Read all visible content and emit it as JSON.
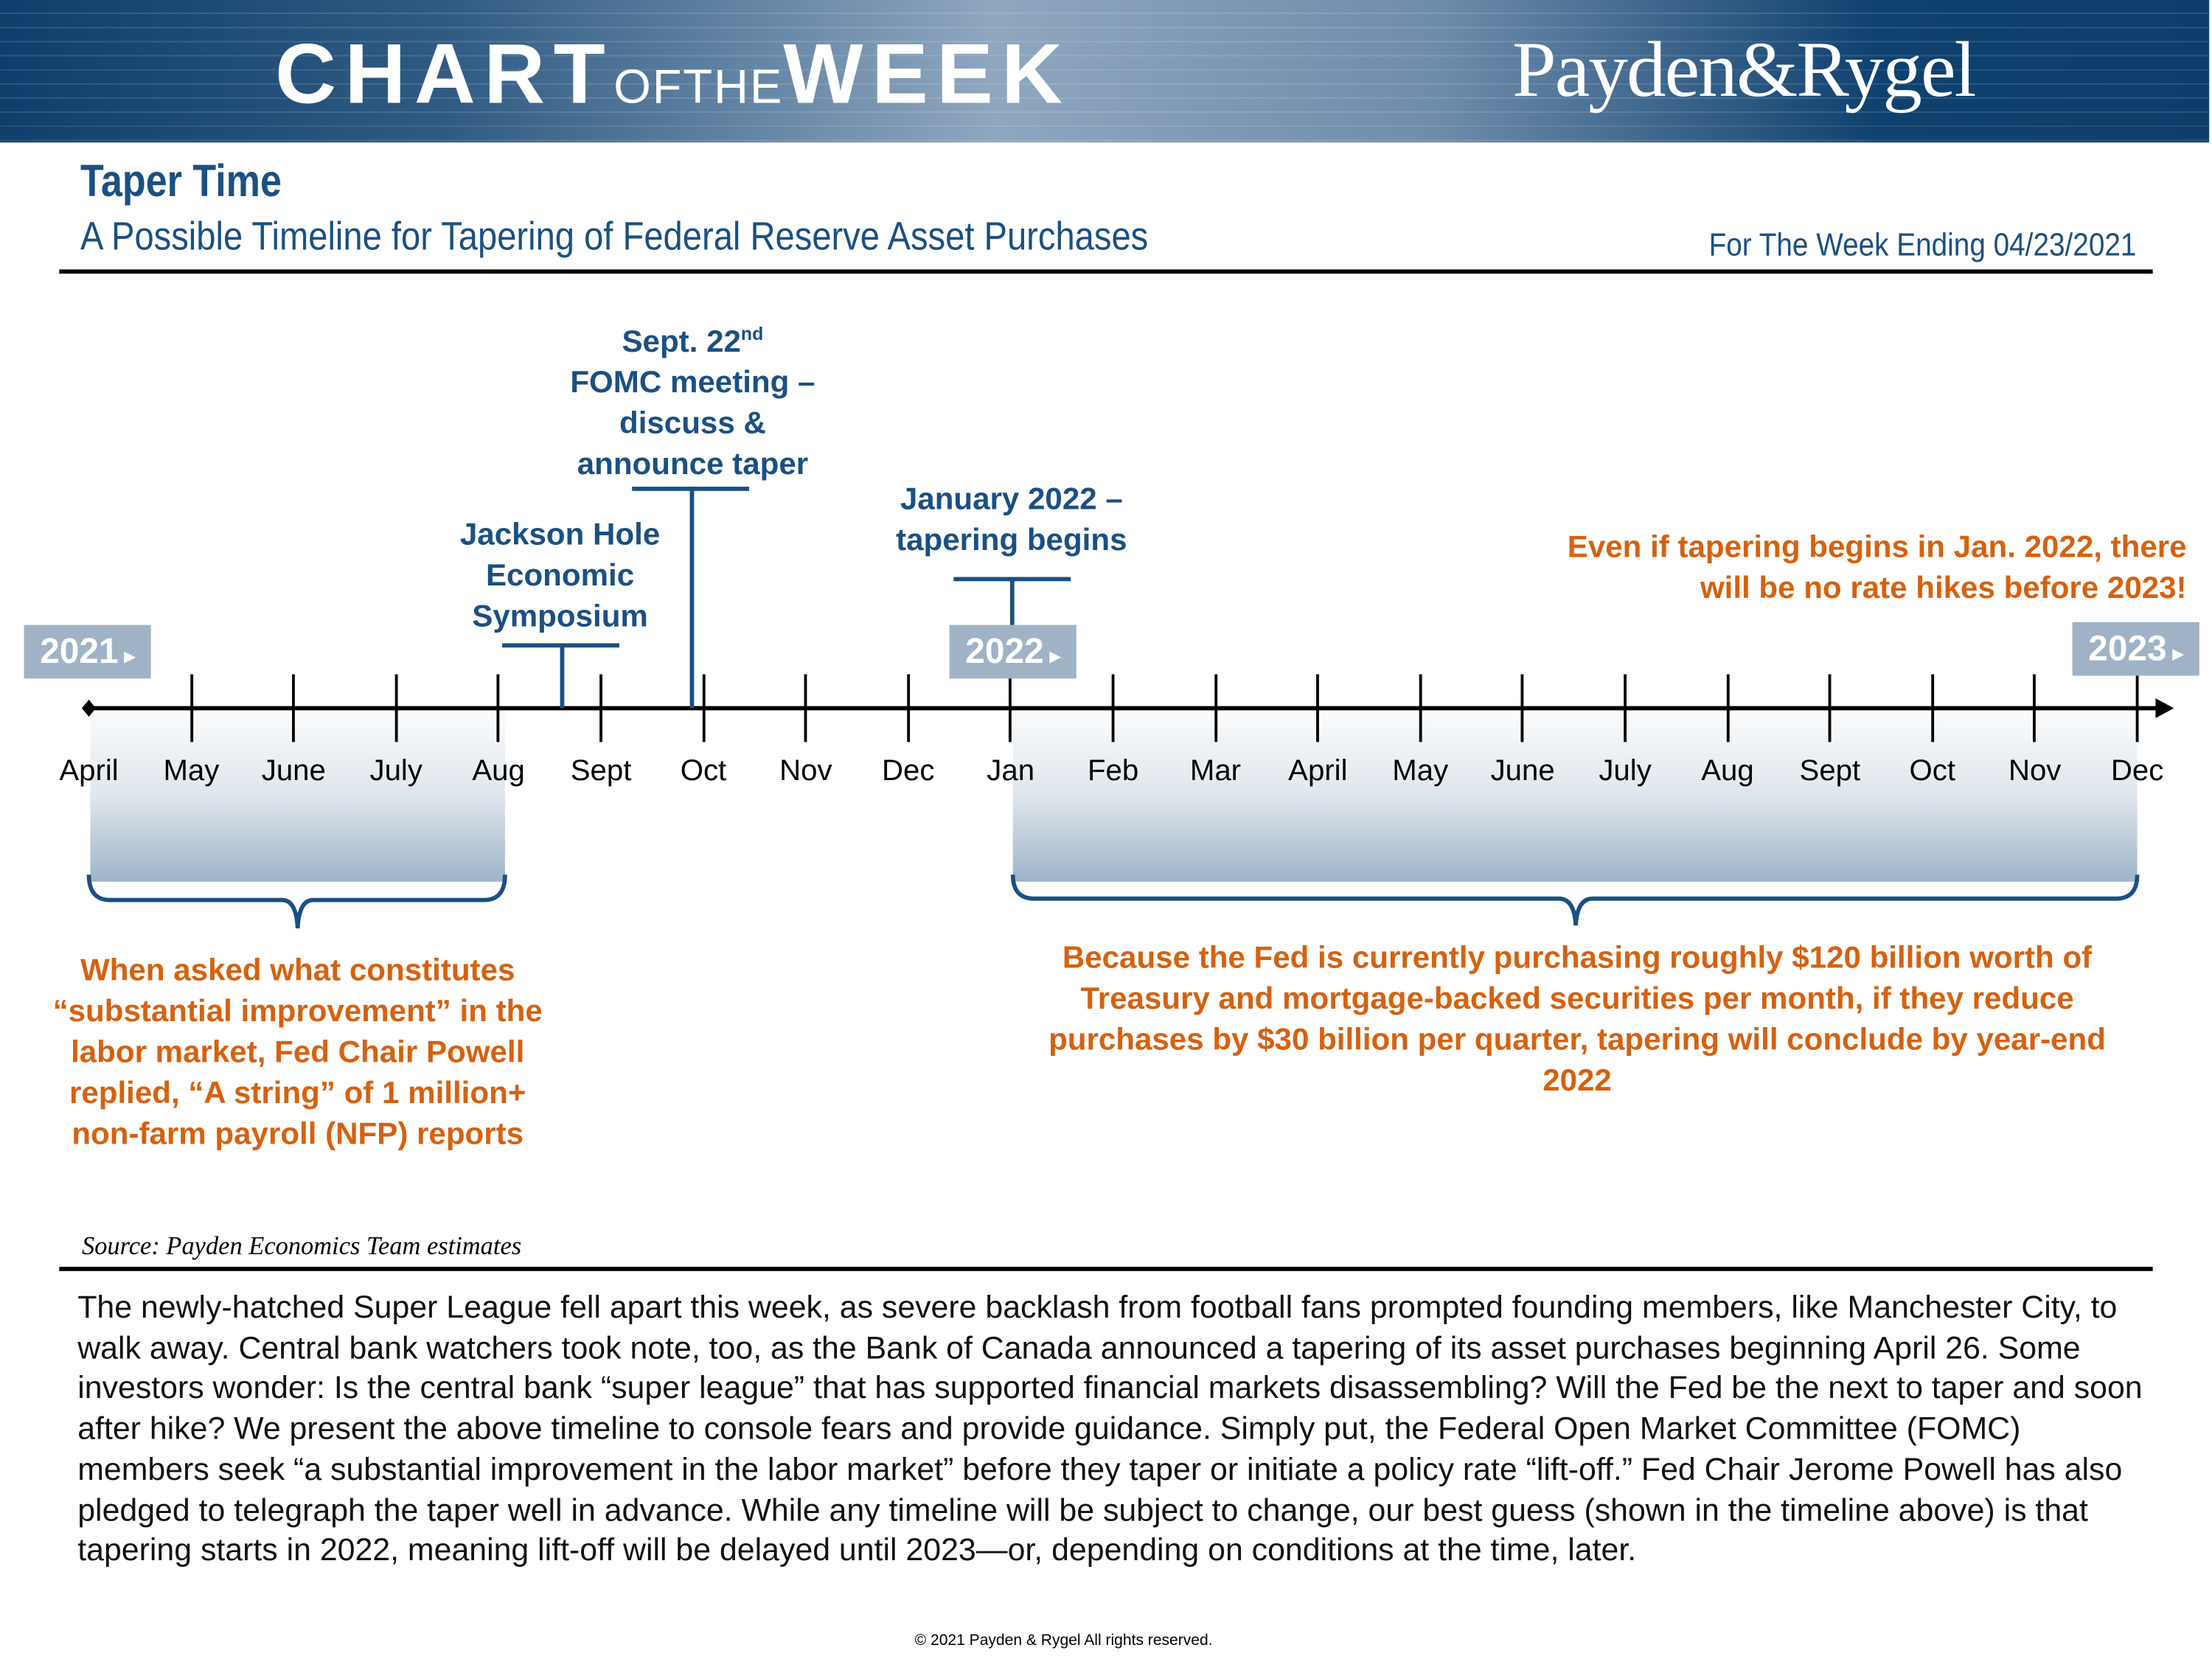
{
  "header": {
    "banner_part1": "CHART",
    "banner_part2": "OFTHE",
    "banner_part3": "WEEK",
    "brand": "Payden&Rygel",
    "title": "Taper Time",
    "subtitle": "A Possible Timeline for Tapering of Federal Reserve Asset Purchases",
    "week_ending": "For The Week Ending 04/23/2021"
  },
  "timeline": {
    "years": [
      "2021",
      "2022",
      "2023"
    ],
    "months": [
      "April",
      "May",
      "June",
      "July",
      "Aug",
      "Sept",
      "Oct",
      "Nov",
      "Dec",
      "Jan",
      "Feb",
      "Mar",
      "April",
      "May",
      "June",
      "July",
      "Aug",
      "Sept",
      "Oct",
      "Nov",
      "Dec"
    ],
    "events": {
      "jackson_hole": "Jackson Hole Economic Symposium",
      "fomc_line1": "Sept. 22",
      "fomc_sup": "nd",
      "fomc_rest": "FOMC meeting – discuss & announce taper",
      "jan2022": "January 2022 – tapering begins"
    },
    "notes": {
      "rate_hikes": "Even if tapering begins in Jan. 2022, there will be no rate hikes before 2023!",
      "left_brace": "When asked what constitutes “substantial improvement” in the labor market, Fed Chair Powell replied, “A string” of 1 million+ non-farm payroll (NFP) reports",
      "right_brace": "Because the Fed is currently purchasing roughly $120 billion worth of Treasury and mortgage-backed securities per month, if they reduce purchases by $30 billion per quarter, tapering will conclude by year-end 2022"
    },
    "colors": {
      "accent_blue": "#1a5082",
      "accent_orange": "#d6610f",
      "year_box": "#a0b3c6"
    }
  },
  "source": "Source: Payden Economics Team estimates",
  "body_text": "The newly-hatched Super League fell apart this week, as severe backlash from football fans prompted founding members, like Manchester City, to walk away. Central bank watchers took note, too, as the Bank of Canada announced a tapering of its asset purchases beginning April 26. Some investors wonder: Is the central bank “super league” that has supported financial markets disassembling? Will the Fed be the next to taper and soon after hike? We present the above timeline to console fears and provide guidance. Simply put, the Federal Open Market Committee (FOMC) members seek “a substantial improvement in the labor market” before they taper or initiate a policy rate “lift-off.” Fed Chair Jerome Powell has also pledged to telegraph the taper well in advance. While any timeline will be subject to change, our best guess (shown in the timeline above) is that tapering starts in 2022, meaning lift-off will be delayed until 2023—or, depending on conditions at the time, later.",
  "copyright": "© 2021 Payden & Rygel All rights reserved."
}
